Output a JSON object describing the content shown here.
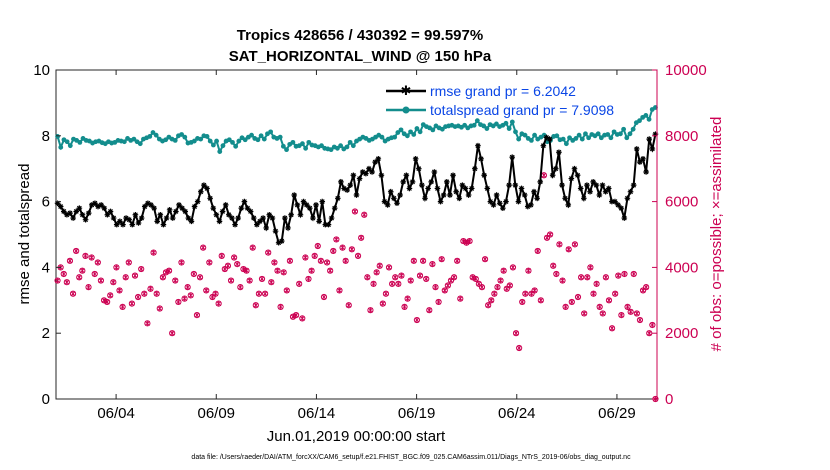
{
  "chart_data": {
    "type": "line",
    "title_line1": "Tropics 428656 / 430392 = 99.597%",
    "title_line2": "SAT_HORIZONTAL_WIND @ 150 hPa",
    "ylabel": "rmse and totalspread",
    "ylabel_right": "# of obs: o=possible; ×=assimilated",
    "xlabel": "Jun.01,2019 00:00:00 start",
    "footnote": "data file: /Users/raeder/DAI/ATM_forcXX/CAM6_setup/f.e21.FHIST_BGC.f09_025.CAM6assim.011/Diags_NTrS_2019-06/obs_diag_output.nc",
    "xlim": [
      0.5,
      30.5
    ],
    "ylim": [
      0,
      10
    ],
    "ylim_right": [
      0,
      10000
    ],
    "x_ticks": [
      3.5,
      8.5,
      13.5,
      18.5,
      23.5,
      28.5
    ],
    "x_tick_labels": [
      "06/04",
      "06/09",
      "06/14",
      "06/19",
      "06/24",
      "06/29"
    ],
    "y_ticks": [
      0,
      2,
      4,
      6,
      8,
      10
    ],
    "y_tick_labels": [
      "0",
      "2",
      "4",
      "6",
      "8",
      "10"
    ],
    "y_right_ticks": [
      0,
      2000,
      4000,
      6000,
      8000,
      10000
    ],
    "y_right_tick_labels": [
      "0",
      "2000",
      "4000",
      "6000",
      "8000",
      "10000"
    ],
    "series": [
      {
        "name": "rmse grand pr = 6.2042",
        "color": "#000000",
        "marker": "star",
        "values": [
          5.95,
          5.85,
          5.7,
          5.6,
          5.65,
          5.5,
          5.7,
          5.8,
          5.6,
          5.45,
          5.65,
          5.9,
          5.95,
          5.85,
          5.9,
          5.8,
          5.6,
          5.7,
          5.5,
          5.3,
          5.4,
          5.3,
          5.5,
          5.45,
          5.3,
          5.6,
          5.35,
          5.5,
          5.85,
          5.95,
          5.9,
          5.8,
          5.4,
          5.6,
          5.3,
          5.5,
          5.75,
          5.5,
          5.7,
          5.9,
          5.8,
          5.7,
          5.5,
          5.4,
          5.85,
          6.0,
          6.3,
          6.5,
          6.4,
          6.1,
          5.8,
          5.6,
          5.4,
          5.7,
          5.9,
          5.6,
          5.5,
          5.3,
          5.5,
          5.8,
          6.0,
          5.8,
          5.7,
          5.5,
          5.3,
          5.4,
          5.5,
          5.2,
          5.6,
          5.5,
          5.1,
          4.75,
          4.8,
          5.5,
          5.2,
          5.6,
          6.2,
          5.9,
          5.6,
          6.0,
          5.9,
          5.8,
          5.5,
          5.9,
          5.4,
          6.0,
          5.3,
          5.3,
          5.5,
          5.8,
          6.1,
          6.6,
          6.4,
          6.35,
          6.5,
          6.8,
          6.2,
          6.7,
          6.9,
          6.85,
          7.0,
          6.9,
          7.2,
          7.3,
          6.8,
          6.0,
          5.9,
          6.3,
          6.1,
          5.95,
          6.2,
          6.6,
          6.8,
          6.4,
          6.6,
          7.3,
          7.0,
          6.5,
          6.1,
          6.4,
          6.6,
          6.9,
          6.4,
          6.0,
          6.2,
          6.6,
          6.2,
          6.8,
          6.3,
          6.1,
          6.5,
          6.4,
          6.2,
          6.4,
          7.0,
          7.7,
          7.3,
          6.8,
          6.4,
          6.0,
          5.9,
          6.2,
          5.95,
          5.8,
          6.0,
          6.5,
          7.35,
          6.5,
          6.0,
          6.4,
          6.2,
          5.85,
          5.9,
          6.3,
          6.1,
          6.6,
          7.7,
          7.95,
          7.9,
          6.8,
          7.0,
          7.5,
          6.5,
          6.1,
          5.9,
          6.7,
          7.0,
          6.8,
          6.4,
          6.1,
          6.5,
          6.3,
          6.6,
          6.5,
          6.2,
          6.5,
          6.3,
          6.4,
          6.0,
          6.0,
          5.9,
          5.8,
          5.5,
          6.1,
          6.3,
          6.5,
          7.6,
          7.2,
          7.3,
          6.9,
          7.9,
          7.6,
          8.05
        ]
      },
      {
        "name": "totalspread grand pr = 7.9098",
        "color": "#138d8d",
        "marker": "circle",
        "values": [
          7.98,
          7.65,
          7.88,
          7.82,
          7.7,
          7.9,
          7.86,
          7.8,
          7.92,
          7.86,
          7.84,
          7.78,
          7.82,
          7.84,
          7.79,
          7.76,
          7.82,
          7.78,
          7.8,
          7.86,
          7.84,
          7.82,
          7.92,
          7.86,
          7.9,
          7.82,
          7.76,
          7.9,
          7.94,
          7.98,
          8.1,
          8.02,
          7.9,
          7.84,
          7.88,
          7.96,
          7.9,
          7.86,
          8.0,
          8.04,
          7.96,
          7.78,
          7.8,
          7.84,
          7.92,
          7.9,
          8.0,
          7.98,
          7.84,
          7.72,
          7.84,
          7.52,
          7.7,
          7.84,
          7.88,
          7.8,
          7.68,
          7.84,
          7.94,
          7.88,
          7.96,
          8.02,
          7.92,
          7.88,
          8.0,
          7.9,
          8.06,
          8.12,
          7.96,
          7.92,
          7.96,
          7.68,
          7.58,
          7.74,
          7.8,
          7.68,
          7.7,
          7.76,
          7.62,
          7.8,
          7.72,
          7.7,
          7.66,
          7.7,
          7.62,
          7.6,
          7.58,
          7.66,
          7.62,
          7.7,
          7.6,
          7.66,
          7.8,
          7.7,
          7.84,
          7.9,
          7.96,
          7.92,
          7.86,
          7.9,
          7.96,
          8.02,
          7.96,
          7.84,
          7.9,
          7.94,
          7.96,
          8.1,
          8.18,
          8.06,
          8.0,
          8.12,
          8.04,
          8.22,
          8.12,
          8.34,
          8.28,
          8.24,
          8.18,
          8.3,
          8.24,
          8.2,
          8.28,
          8.3,
          8.32,
          8.28,
          8.3,
          8.26,
          8.32,
          8.24,
          8.3,
          8.32,
          8.46,
          8.34,
          8.3,
          8.22,
          8.34,
          8.3,
          8.36,
          8.28,
          8.32,
          8.38,
          8.22,
          8.42,
          8.12,
          7.9,
          8.06,
          8.02,
          7.92,
          7.86,
          8.02,
          7.9,
          7.96,
          8.02,
          7.82,
          7.86,
          7.98,
          8.0,
          7.88,
          7.9,
          7.76,
          7.94,
          7.86,
          7.92,
          8.02,
          7.9,
          8.06,
          7.94,
          8.04,
          8.0,
          8.06,
          7.94,
          8.02,
          8.04,
          7.94,
          8.12,
          8.04,
          8.06,
          8.2,
          7.94,
          8.06,
          8.2,
          8.4,
          8.46,
          8.56,
          8.62,
          8.5,
          8.8,
          8.86
        ]
      }
    ],
    "obs_possible": [
      3600,
      4000,
      3800,
      3550,
      4200,
      3200,
      4500,
      3700,
      3900,
      4350,
      3400,
      4300,
      3800,
      4150,
      3600,
      3000,
      2950,
      3150,
      3550,
      4000,
      3300,
      2800,
      3700,
      4150,
      2900,
      3750,
      3100,
      3950,
      3200,
      2300,
      3350,
      4450,
      3200,
      2750,
      3700,
      3850,
      3900,
      2000,
      3600,
      2950,
      4150,
      3050,
      3400,
      3150,
      3800,
      2550,
      3700,
      4600,
      3300,
      4150,
      3100,
      3200,
      2900,
      4350,
      3950,
      4050,
      3600,
      4300,
      4100,
      3400,
      3950,
      3900,
      3600,
      4600,
      2850,
      3200,
      3650,
      3200,
      4450,
      3550,
      4150,
      3900,
      2800,
      3850,
      3300,
      4200,
      2500,
      2550,
      3500,
      2450,
      4300,
      3650,
      3900,
      4350,
      4650,
      4200,
      3100,
      4150,
      3900,
      4500,
      4850,
      3300,
      4600,
      4200,
      2850,
      4550,
      5700,
      4350,
      4900,
      5600,
      3700,
      2700,
      3500,
      3850,
      4050,
      2900,
      3200,
      4000,
      3500,
      3700,
      3500,
      3750,
      2800,
      3050,
      3600,
      4200,
      2400,
      3750,
      4200,
      3650,
      2700,
      4100,
      3400,
      2950,
      4250,
      3300,
      3450,
      3600,
      3700,
      4200,
      3050,
      4800,
      4750,
      4800,
      3700,
      3650,
      3500,
      3400,
      4250,
      2850,
      3000,
      3200,
      3400,
      3600,
      3900,
      3350,
      3450,
      4000,
      2000,
      1550,
      2950,
      3200,
      3900,
      3200,
      3300,
      4500,
      3000,
      6800,
      4900,
      5000,
      4050,
      3800,
      4700,
      3600,
      2800,
      4550,
      2950,
      4700,
      3100,
      3700,
      2600,
      3700,
      4000,
      3200,
      3500,
      2800,
      2600,
      3700,
      3000,
      2150,
      3200,
      3750,
      2550,
      3800,
      2800,
      2650,
      3800,
      2600,
      2400,
      3300,
      3400,
      2000,
      2250,
      0
    ]
  }
}
